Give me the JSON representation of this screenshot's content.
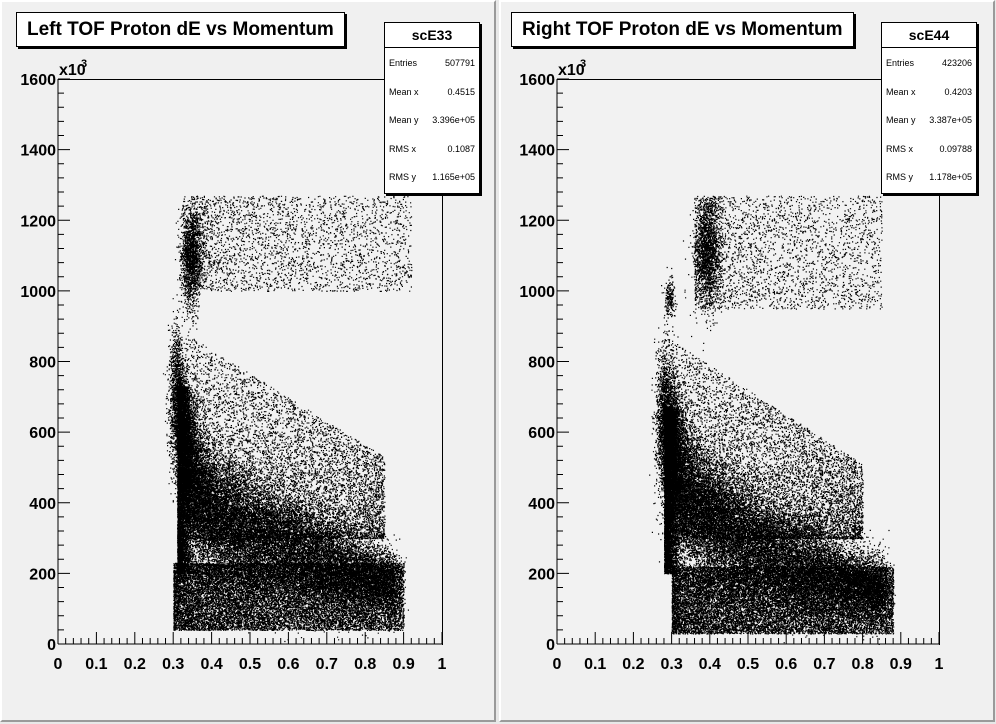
{
  "chart_data": [
    {
      "type": "scatter",
      "title": "Left TOF Proton dE vs Momentum",
      "xlim": [
        0,
        1
      ],
      "ylim": [
        0,
        1600000
      ],
      "x_ticks": [
        "0",
        "0.1",
        "0.2",
        "0.3",
        "0.4",
        "0.5",
        "0.6",
        "0.7",
        "0.8",
        "0.9",
        "1"
      ],
      "y_ticks": [
        "0",
        "200",
        "400",
        "600",
        "800",
        "1000",
        "1200",
        "1400",
        "1600"
      ],
      "y_exponent_base": "x10",
      "y_exponent_power": "3",
      "stats": {
        "name": "scE33",
        "rows": [
          {
            "label": "Entries",
            "value": "507791"
          },
          {
            "label": "Mean x",
            "value": "0.4515"
          },
          {
            "label": "Mean y",
            "value": "3.396e+05"
          },
          {
            "label": "RMS x",
            "value": "0.1087"
          },
          {
            "label": "RMS y",
            "value": "1.165e+05"
          }
        ]
      },
      "regions": [
        {
          "name": "proton-band-core",
          "points": [
            [
              0.31,
              680000
            ],
            [
              0.32,
              620000
            ],
            [
              0.33,
              550000
            ],
            [
              0.35,
              470000
            ],
            [
              0.38,
              400000
            ],
            [
              0.42,
              350000
            ],
            [
              0.48,
              320000
            ],
            [
              0.55,
              290000
            ],
            [
              0.62,
              260000
            ],
            [
              0.7,
              230000
            ],
            [
              0.78,
              200000
            ],
            [
              0.84,
              180000
            ],
            [
              0.88,
              170000
            ]
          ]
        },
        {
          "name": "low-de-band",
          "x": [
            0.3,
            0.9
          ],
          "y": [
            40000,
            230000
          ]
        },
        {
          "name": "diffuse-upper",
          "x": [
            0.33,
            0.85
          ],
          "y": [
            300000,
            880000
          ]
        },
        {
          "name": "upper-cluster",
          "x": [
            0.32,
            0.37
          ],
          "y": [
            950000,
            1250000
          ]
        },
        {
          "name": "upper-diffuse",
          "x": [
            0.36,
            0.92
          ],
          "y": [
            1000000,
            1270000
          ]
        }
      ]
    },
    {
      "type": "scatter",
      "title": "Right TOF Proton dE vs Momentum",
      "xlim": [
        0,
        1
      ],
      "ylim": [
        0,
        1600000
      ],
      "x_ticks": [
        "0",
        "0.1",
        "0.2",
        "0.3",
        "0.4",
        "0.5",
        "0.6",
        "0.7",
        "0.8",
        "0.9",
        "1"
      ],
      "y_ticks": [
        "0",
        "200",
        "400",
        "600",
        "800",
        "1000",
        "1200",
        "1400",
        "1600"
      ],
      "y_exponent_base": "x10",
      "y_exponent_power": "3",
      "stats": {
        "name": "scE44",
        "rows": [
          {
            "label": "Entries",
            "value": "423206"
          },
          {
            "label": "Mean x",
            "value": "0.4203"
          },
          {
            "label": "Mean y",
            "value": "3.387e+05"
          },
          {
            "label": "RMS x",
            "value": "0.09788"
          },
          {
            "label": "RMS y",
            "value": "1.178e+05"
          }
        ]
      },
      "regions": [
        {
          "name": "proton-band-core",
          "points": [
            [
              0.28,
              620000
            ],
            [
              0.3,
              560000
            ],
            [
              0.32,
              480000
            ],
            [
              0.35,
              410000
            ],
            [
              0.4,
              350000
            ],
            [
              0.46,
              310000
            ],
            [
              0.52,
              280000
            ],
            [
              0.6,
              240000
            ],
            [
              0.68,
              210000
            ],
            [
              0.76,
              180000
            ],
            [
              0.83,
              160000
            ],
            [
              0.86,
              150000
            ]
          ]
        },
        {
          "name": "low-de-band",
          "x": [
            0.3,
            0.88
          ],
          "y": [
            30000,
            220000
          ]
        },
        {
          "name": "diffuse-upper",
          "x": [
            0.3,
            0.8
          ],
          "y": [
            300000,
            860000
          ]
        },
        {
          "name": "upper-cluster",
          "x": [
            0.36,
            0.43
          ],
          "y": [
            950000,
            1270000
          ]
        },
        {
          "name": "upper-diffuse",
          "x": [
            0.36,
            0.85
          ],
          "y": [
            950000,
            1270000
          ]
        },
        {
          "name": "small-cluster",
          "x": [
            0.28,
            0.31
          ],
          "y": [
            920000,
            1040000
          ]
        }
      ]
    }
  ]
}
